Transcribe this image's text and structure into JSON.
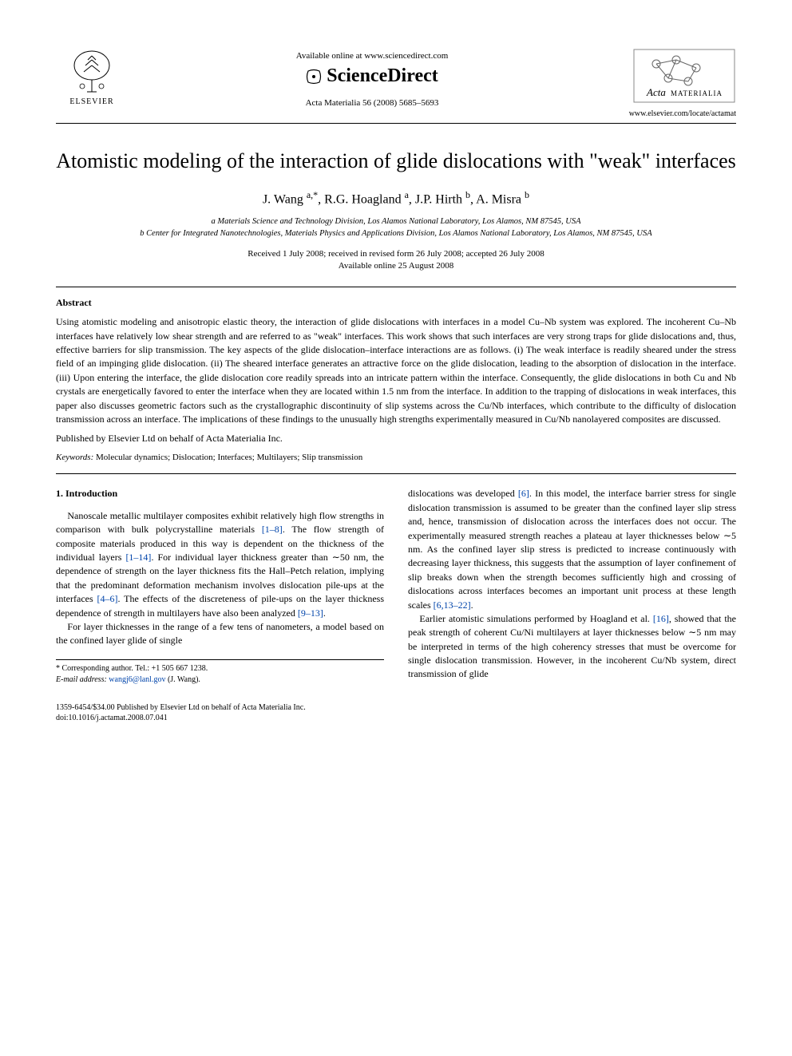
{
  "header": {
    "elsevier_label": "ELSEVIER",
    "available_online": "Available online at www.sciencedirect.com",
    "scidirect": "ScienceDirect",
    "journal_ref": "Acta Materialia 56 (2008) 5685–5693",
    "acta_italic": "Acta",
    "acta_caps": "MATERIALIA",
    "locate_url": "www.elsevier.com/locate/actamat"
  },
  "title": "Atomistic modeling of the interaction of glide dislocations with \"weak\" interfaces",
  "authors_html": "J. Wang <sup>a,*</sup>, R.G. Hoagland <sup>a</sup>, J.P. Hirth <sup>b</sup>, A. Misra <sup>b</sup>",
  "affiliations": {
    "a": "a Materials Science and Technology Division, Los Alamos National Laboratory, Los Alamos, NM 87545, USA",
    "b": "b Center for Integrated Nanotechnologies, Materials Physics and Applications Division, Los Alamos National Laboratory, Los Alamos, NM 87545, USA"
  },
  "dates": {
    "received": "Received 1 July 2008; received in revised form 26 July 2008; accepted 26 July 2008",
    "online": "Available online 25 August 2008"
  },
  "abstract": {
    "heading": "Abstract",
    "text": "Using atomistic modeling and anisotropic elastic theory, the interaction of glide dislocations with interfaces in a model Cu–Nb system was explored. The incoherent Cu–Nb interfaces have relatively low shear strength and are referred to as \"weak\" interfaces. This work shows that such interfaces are very strong traps for glide dislocations and, thus, effective barriers for slip transmission. The key aspects of the glide dislocation–interface interactions are as follows. (i) The weak interface is readily sheared under the stress field of an impinging glide dislocation. (ii) The sheared interface generates an attractive force on the glide dislocation, leading to the absorption of dislocation in the interface. (iii) Upon entering the interface, the glide dislocation core readily spreads into an intricate pattern within the interface. Consequently, the glide dislocations in both Cu and Nb crystals are energetically favored to enter the interface when they are located within 1.5 nm from the interface. In addition to the trapping of dislocations in weak interfaces, this paper also discusses geometric factors such as the crystallographic discontinuity of slip systems across the Cu/Nb interfaces, which contribute to the difficulty of dislocation transmission across an interface. The implications of these findings to the unusually high strengths experimentally measured in Cu/Nb nanolayered composites are discussed.",
    "pubby": "Published by Elsevier Ltd on behalf of Acta Materialia Inc."
  },
  "keywords": {
    "label": "Keywords:",
    "text": " Molecular dynamics; Dislocation; Interfaces; Multilayers; Slip transmission"
  },
  "section1_heading": "1. Introduction",
  "left_col": {
    "p1a": "Nanoscale metallic multilayer composites exhibit relatively high flow strengths in comparison with bulk polycrystalline materials ",
    "r1": "[1–8]",
    "p1b": ". The flow strength of composite materials produced in this way is dependent on the thickness of the individual layers ",
    "r2": "[1–14]",
    "p1c": ". For individual layer thickness greater than ∼50 nm, the dependence of strength on the layer thickness fits the Hall–Petch relation, implying that the predominant deformation mechanism involves dislocation pile-ups at the interfaces ",
    "r3": "[4–6]",
    "p1d": ". The effects of the discreteness of pile-ups on the layer thickness dependence of strength in multilayers have also been analyzed ",
    "r4": "[9–13]",
    "p1e": ".",
    "p2": "For layer thicknesses in the range of a few tens of nanometers, a model based on the confined layer glide of single"
  },
  "right_col": {
    "p1a": "dislocations was developed ",
    "r1": "[6]",
    "p1b": ". In this model, the interface barrier stress for single dislocation transmission is assumed to be greater than the confined layer slip stress and, hence, transmission of dislocation across the interfaces does not occur. The experimentally measured strength reaches a plateau at layer thicknesses below ∼5 nm. As the confined layer slip stress is predicted to increase continuously with decreasing layer thickness, this suggests that the assumption of layer confinement of slip breaks down when the strength becomes sufficiently high and crossing of dislocations across interfaces becomes an important unit process at these length scales ",
    "r2": "[6,13–22]",
    "p1c": ".",
    "p2a": "Earlier atomistic simulations performed by Hoagland et al. ",
    "r3": "[16]",
    "p2b": ", showed that the peak strength of coherent Cu/Ni multilayers at layer thicknesses below ∼5 nm may be interpreted in terms of the high coherency stresses that must be overcome for single dislocation transmission. However, in the incoherent Cu/Nb system, direct transmission of glide"
  },
  "footnotes": {
    "corr": "* Corresponding author. Tel.: +1 505 667 1238.",
    "email_label": "E-mail address: ",
    "email": "wangj6@lanl.gov",
    "email_suffix": " (J. Wang)."
  },
  "footer": {
    "line1": "1359-6454/$34.00 Published by Elsevier Ltd on behalf of Acta Materialia Inc.",
    "line2": "doi:10.1016/j.actamat.2008.07.041"
  },
  "colors": {
    "link": "#0044aa",
    "text": "#000000",
    "bg": "#ffffff"
  }
}
